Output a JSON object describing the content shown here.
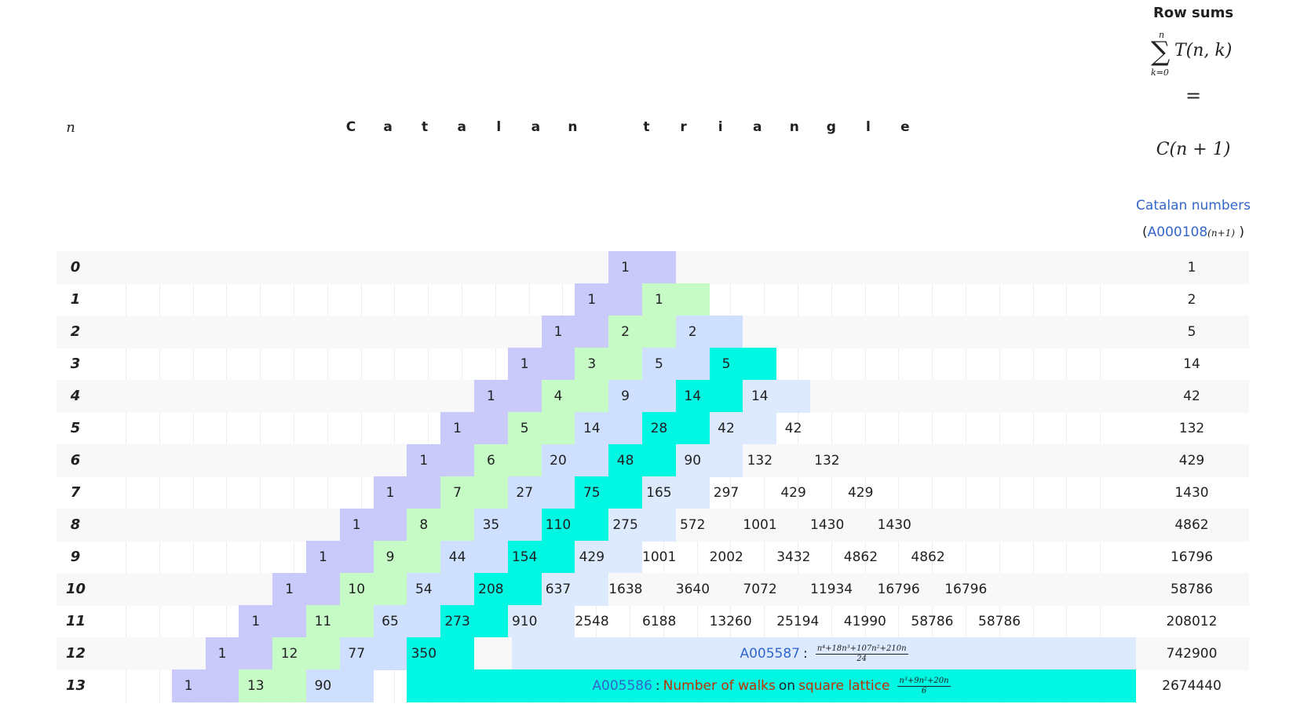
{
  "header": {
    "n_label": "n",
    "title_letters": [
      "C",
      "a",
      "t",
      "a",
      "l",
      "a",
      "n",
      "",
      "t",
      "r",
      "i",
      "a",
      "n",
      "g",
      "l",
      "e"
    ],
    "row_sums_title": "Row sums",
    "sum_upper": "n",
    "sum_symbol": "∑",
    "sum_lower": "k=0",
    "sum_expr": "T(n, k)",
    "equals": "=",
    "catalan_expr": "C(n + 1)",
    "catalan_link": "Catalan numbers",
    "oeis_open": "(",
    "oeis_link": "A000108",
    "oeis_sub": "(n+1)",
    "oeis_close": " )"
  },
  "rows": [
    {
      "n": "0",
      "values": [
        "1"
      ],
      "sum": "1"
    },
    {
      "n": "1",
      "values": [
        "1",
        "1"
      ],
      "sum": "2"
    },
    {
      "n": "2",
      "values": [
        "1",
        "2",
        "2"
      ],
      "sum": "5"
    },
    {
      "n": "3",
      "values": [
        "1",
        "3",
        "5",
        "5"
      ],
      "sum": "14"
    },
    {
      "n": "4",
      "values": [
        "1",
        "4",
        "9",
        "14",
        "14"
      ],
      "sum": "42"
    },
    {
      "n": "5",
      "values": [
        "1",
        "5",
        "14",
        "28",
        "42",
        "42"
      ],
      "sum": "132"
    },
    {
      "n": "6",
      "values": [
        "1",
        "6",
        "20",
        "48",
        "90",
        "132",
        "132"
      ],
      "sum": "429"
    },
    {
      "n": "7",
      "values": [
        "1",
        "7",
        "27",
        "75",
        "165",
        "297",
        "429",
        "429"
      ],
      "sum": "1430"
    },
    {
      "n": "8",
      "values": [
        "1",
        "8",
        "35",
        "110",
        "275",
        "572",
        "1001",
        "1430",
        "1430"
      ],
      "sum": "4862"
    },
    {
      "n": "9",
      "values": [
        "1",
        "9",
        "44",
        "154",
        "429",
        "1001",
        "2002",
        "3432",
        "4862",
        "4862"
      ],
      "sum": "16796"
    },
    {
      "n": "10",
      "values": [
        "1",
        "10",
        "54",
        "208",
        "637",
        "1638",
        "3640",
        "7072",
        "11934",
        "16796",
        "16796"
      ],
      "sum": "58786"
    },
    {
      "n": "11",
      "values": [
        "1",
        "11",
        "65",
        "273",
        "910",
        "2548",
        "6188",
        "13260",
        "25194",
        "41990",
        "58786",
        "58786"
      ],
      "sum": "208012"
    },
    {
      "n": "12",
      "values": [
        "1",
        "12",
        "77",
        "350"
      ],
      "sum": "742900"
    },
    {
      "n": "13",
      "values": [
        "1",
        "13",
        "90"
      ],
      "sum": "2674440"
    }
  ],
  "banners": {
    "row12": {
      "link": "A005587",
      "sep": ":",
      "num": "n⁴+18n³+107n²+210n",
      "den": "24"
    },
    "row13": {
      "link": "A005586",
      "sep": ":",
      "text1": "Number of walks",
      "text2": "on",
      "text3": "square lattice",
      "num": "n³+9n²+20n",
      "den": "6"
    }
  },
  "colors": {
    "purple": "#c9c9fa",
    "green": "#c6fbc6",
    "lightblue": "#cfe0ff",
    "cyan": "#00f7e2",
    "paleblue": "#dde9fd",
    "link": "#3366cc"
  }
}
